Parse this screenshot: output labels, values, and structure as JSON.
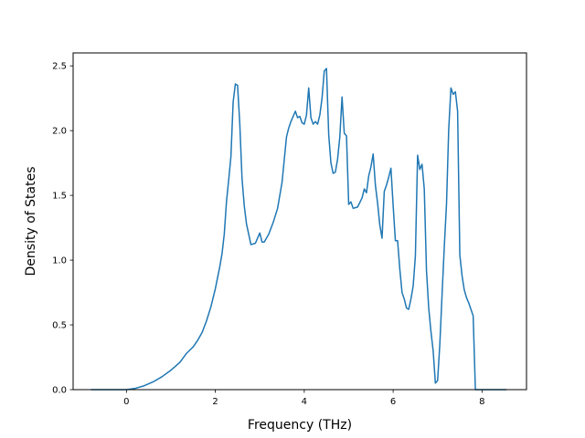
{
  "chart_data": {
    "type": "line",
    "title": "",
    "xlabel": "Frequency (THz)",
    "ylabel": "Density of States",
    "xlim": [
      -1.2,
      9.0
    ],
    "ylim": [
      0.0,
      2.6
    ],
    "xticks": [
      0,
      2,
      4,
      6,
      8
    ],
    "xtick_labels": [
      "0",
      "2",
      "4",
      "6",
      "8"
    ],
    "yticks": [
      0.0,
      0.5,
      1.0,
      1.5,
      2.0,
      2.5
    ],
    "ytick_labels": [
      "0.0",
      "0.5",
      "1.0",
      "1.5",
      "2.0",
      "2.5"
    ],
    "grid": false,
    "line_color": "#1f77b4",
    "series": [
      {
        "x": [
          -0.8,
          -0.5,
          0.0,
          0.2,
          0.4,
          0.6,
          0.8,
          1.0,
          1.2,
          1.35,
          1.5,
          1.6,
          1.7,
          1.8,
          1.9,
          2.0,
          2.1,
          2.15,
          2.2,
          2.25,
          2.3,
          2.35,
          2.4,
          2.45,
          2.5,
          2.55,
          2.6,
          2.65,
          2.7,
          2.8,
          2.9,
          2.95,
          3.0,
          3.05,
          3.1,
          3.2,
          3.3,
          3.4,
          3.5,
          3.6,
          3.65,
          3.7,
          3.75,
          3.8,
          3.85,
          3.9,
          3.95,
          4.0,
          4.05,
          4.1,
          4.15,
          4.2,
          4.25,
          4.3,
          4.35,
          4.4,
          4.45,
          4.5,
          4.55,
          4.6,
          4.65,
          4.7,
          4.75,
          4.8,
          4.85,
          4.9,
          4.95,
          5.0,
          5.05,
          5.1,
          5.2,
          5.3,
          5.35,
          5.4,
          5.45,
          5.5,
          5.55,
          5.6,
          5.65,
          5.7,
          5.75,
          5.8,
          5.85,
          5.9,
          5.95,
          6.0,
          6.05,
          6.1,
          6.15,
          6.2,
          6.25,
          6.3,
          6.35,
          6.4,
          6.45,
          6.5,
          6.55,
          6.6,
          6.65,
          6.7,
          6.75,
          6.8,
          6.85,
          6.9,
          6.95,
          7.0,
          7.05,
          7.1,
          7.15,
          7.2,
          7.25,
          7.3,
          7.35,
          7.4,
          7.45,
          7.5,
          7.55,
          7.6,
          7.65,
          7.7,
          7.75,
          7.8,
          7.85,
          8.0,
          8.3,
          8.55
        ],
        "y": [
          0.0,
          0.0,
          0.0,
          0.01,
          0.03,
          0.06,
          0.1,
          0.15,
          0.21,
          0.28,
          0.33,
          0.38,
          0.44,
          0.53,
          0.64,
          0.78,
          0.95,
          1.05,
          1.2,
          1.45,
          1.62,
          1.8,
          2.22,
          2.36,
          2.35,
          2.05,
          1.63,
          1.42,
          1.28,
          1.12,
          1.13,
          1.17,
          1.21,
          1.14,
          1.14,
          1.2,
          1.29,
          1.4,
          1.6,
          1.95,
          2.02,
          2.07,
          2.11,
          2.15,
          2.1,
          2.11,
          2.06,
          2.05,
          2.12,
          2.33,
          2.1,
          2.05,
          2.07,
          2.05,
          2.12,
          2.25,
          2.46,
          2.48,
          1.97,
          1.75,
          1.67,
          1.68,
          1.78,
          1.95,
          2.26,
          1.98,
          1.96,
          1.43,
          1.45,
          1.4,
          1.41,
          1.48,
          1.55,
          1.52,
          1.65,
          1.72,
          1.82,
          1.58,
          1.44,
          1.27,
          1.17,
          1.53,
          1.58,
          1.64,
          1.71,
          1.42,
          1.15,
          1.15,
          0.93,
          0.75,
          0.7,
          0.63,
          0.62,
          0.7,
          0.8,
          1.03,
          1.81,
          1.7,
          1.74,
          1.55,
          0.92,
          0.63,
          0.45,
          0.3,
          0.05,
          0.07,
          0.35,
          0.73,
          1.1,
          1.43,
          2.01,
          2.33,
          2.28,
          2.3,
          2.15,
          1.04,
          0.88,
          0.77,
          0.71,
          0.67,
          0.62,
          0.57,
          0.0,
          0.0,
          0.0,
          0.0
        ]
      }
    ]
  }
}
